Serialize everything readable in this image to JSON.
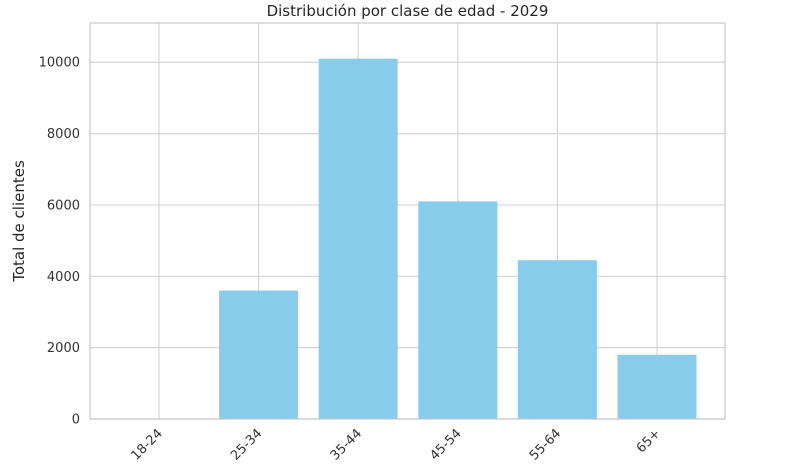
{
  "chart_data": {
    "type": "bar",
    "title": "Distribución por clase de edad - 2029",
    "xlabel": "",
    "ylabel": "Total de clientes",
    "categories": [
      "18-24",
      "25-34",
      "35-44",
      "45-54",
      "55-64",
      "65+"
    ],
    "values": [
      0,
      3600,
      10100,
      6100,
      4450,
      1800
    ],
    "ylim": [
      0,
      11100
    ],
    "yticks": [
      0,
      2000,
      4000,
      6000,
      8000,
      10000
    ],
    "ytick_labels": [
      "0",
      "2000",
      "4000",
      "6000",
      "8000",
      "10000"
    ],
    "grid": true,
    "bar_color": "#87CCEB"
  }
}
